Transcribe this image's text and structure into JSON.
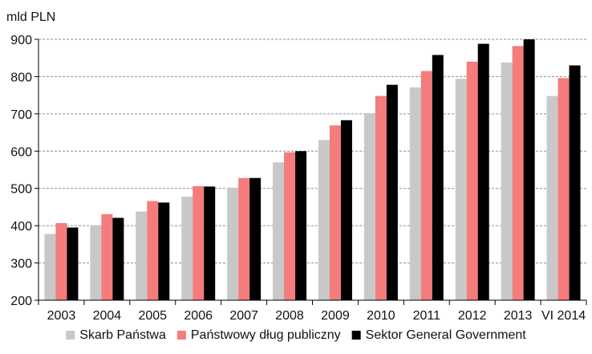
{
  "chart_data": {
    "type": "bar",
    "title": "",
    "unit_label": "mld PLN",
    "xlabel": "",
    "ylabel": "",
    "ylim": [
      200,
      900
    ],
    "yticks": [
      200,
      300,
      400,
      500,
      600,
      700,
      800,
      900
    ],
    "grid": true,
    "legend_position": "bottom",
    "categories": [
      "2003",
      "2004",
      "2005",
      "2006",
      "2007",
      "2008",
      "2009",
      "2010",
      "2011",
      "2012",
      "2013",
      "VI 2014"
    ],
    "series": [
      {
        "name": "Skarb Państwa",
        "color": "#c8c8c8",
        "values": [
          378,
          401,
          438,
          478,
          502,
          570,
          630,
          702,
          771,
          794,
          838,
          748
        ]
      },
      {
        "name": "Państwowy dług publiczny",
        "color": "#f47c7c",
        "values": [
          407,
          431,
          466,
          506,
          528,
          597,
          669,
          748,
          815,
          840,
          882,
          796
        ]
      },
      {
        "name": "Sektor General Government",
        "color": "#000000",
        "values": [
          395,
          421,
          462,
          505,
          528,
          600,
          683,
          778,
          858,
          888,
          900,
          830
        ]
      }
    ]
  }
}
